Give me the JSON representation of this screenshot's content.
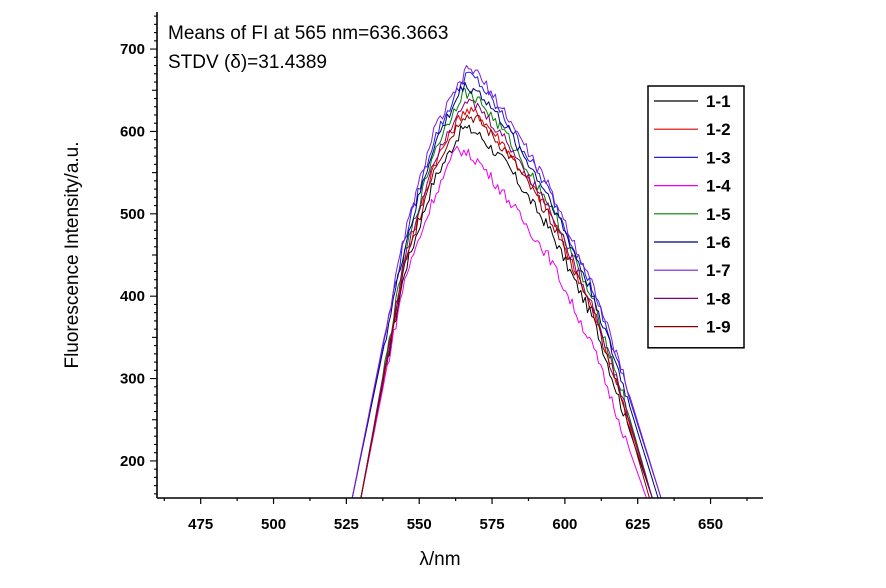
{
  "chart_data": {
    "type": "line",
    "annotations": [
      "Means of FI at 565 nm=636.3663",
      "STDV (δ)=31.4389"
    ],
    "xlabel": "λ/nm",
    "ylabel": "Fluorescence Intensity/a.u.",
    "xlim": [
      460,
      668
    ],
    "ylim": [
      155,
      745
    ],
    "xticks": [
      475,
      500,
      525,
      550,
      575,
      600,
      625,
      650
    ],
    "yticks": [
      200,
      300,
      400,
      500,
      600,
      700
    ],
    "legend_position": "top-right",
    "series": [
      {
        "name": "1-1",
        "color": "#000000",
        "x": [
          530,
          545,
          555,
          565,
          570,
          580,
          595,
          610,
          620,
          630
        ],
        "y": [
          155,
          430,
          540,
          605,
          598,
          560,
          480,
          370,
          260,
          155
        ]
      },
      {
        "name": "1-2",
        "color": "#e00000",
        "x": [
          530,
          545,
          555,
          565,
          570,
          580,
          595,
          610,
          620,
          630
        ],
        "y": [
          155,
          440,
          560,
          625,
          622,
          580,
          500,
          380,
          270,
          155
        ]
      },
      {
        "name": "1-3",
        "color": "#2020dd",
        "x": [
          527,
          545,
          555,
          566,
          570,
          580,
          595,
          610,
          620,
          633
        ],
        "y": [
          155,
          470,
          590,
          670,
          662,
          612,
          525,
          405,
          300,
          155
        ]
      },
      {
        "name": "1-4",
        "color": "#ee00ee",
        "x": [
          530,
          545,
          555,
          563,
          570,
          580,
          595,
          610,
          620,
          628
        ],
        "y": [
          155,
          420,
          520,
          580,
          565,
          520,
          445,
          335,
          235,
          155
        ]
      },
      {
        "name": "1-5",
        "color": "#008000",
        "x": [
          530,
          545,
          555,
          565,
          570,
          580,
          595,
          610,
          620,
          630
        ],
        "y": [
          155,
          450,
          575,
          648,
          640,
          595,
          510,
          390,
          280,
          155
        ]
      },
      {
        "name": "1-6",
        "color": "#000080",
        "x": [
          527,
          545,
          555,
          565,
          570,
          580,
          595,
          610,
          620,
          632
        ],
        "y": [
          155,
          460,
          582,
          655,
          650,
          605,
          518,
          398,
          292,
          155
        ]
      },
      {
        "name": "1-7",
        "color": "#7b1fd8",
        "x": [
          527,
          545,
          555,
          567,
          570,
          580,
          595,
          610,
          620,
          633
        ],
        "y": [
          155,
          475,
          600,
          678,
          670,
          620,
          530,
          410,
          305,
          155
        ]
      },
      {
        "name": "1-8",
        "color": "#800080",
        "x": [
          530,
          545,
          555,
          565,
          570,
          580,
          595,
          610,
          620,
          630
        ],
        "y": [
          155,
          445,
          566,
          636,
          630,
          588,
          505,
          385,
          275,
          155
        ]
      },
      {
        "name": "1-9",
        "color": "#8b0000",
        "x": [
          530,
          545,
          555,
          565,
          570,
          580,
          595,
          610,
          620,
          629
        ],
        "y": [
          155,
          435,
          555,
          620,
          615,
          575,
          495,
          378,
          268,
          155
        ]
      }
    ]
  }
}
